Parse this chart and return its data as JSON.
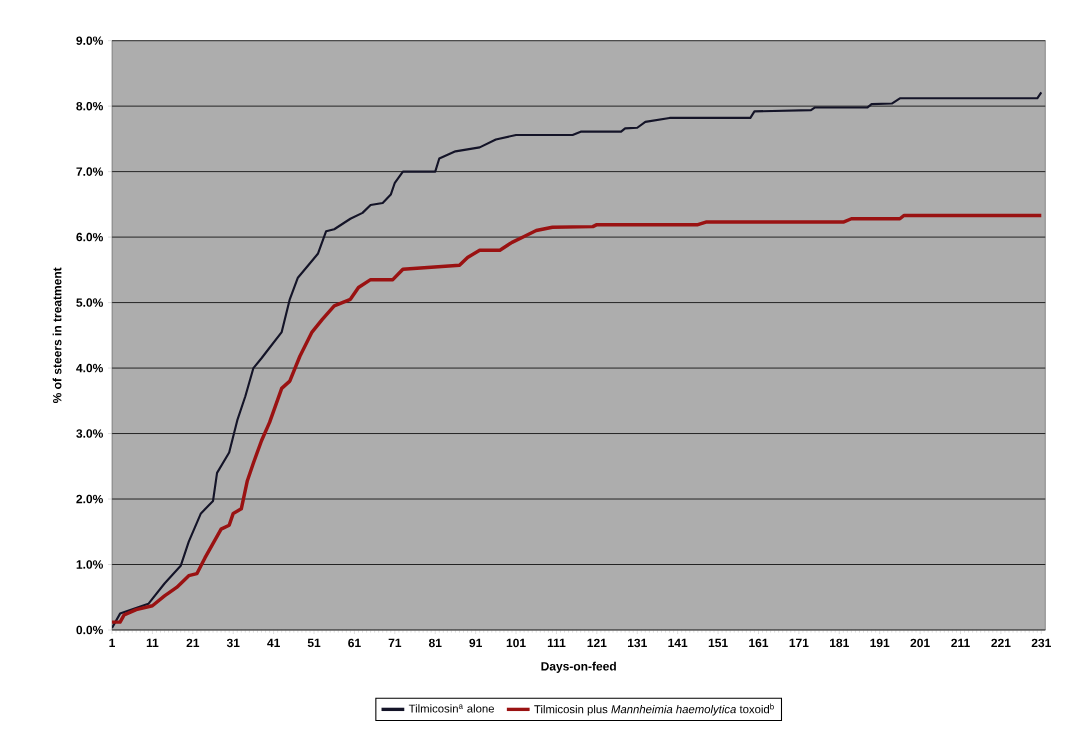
{
  "chart_data": {
    "type": "line",
    "xlabel": "Days-on-feed",
    "ylabel": "% of steers in treatment",
    "xlim": [
      1,
      232
    ],
    "ylim": [
      0,
      9
    ],
    "xticks": [
      1,
      11,
      21,
      31,
      41,
      51,
      61,
      71,
      81,
      91,
      101,
      111,
      121,
      131,
      141,
      151,
      161,
      171,
      181,
      191,
      201,
      211,
      221,
      231
    ],
    "yticks": [
      {
        "value": 0,
        "label": "0.0%"
      },
      {
        "value": 1,
        "label": "1.0%"
      },
      {
        "value": 2,
        "label": "2.0%"
      },
      {
        "value": 3,
        "label": "3.0%"
      },
      {
        "value": 4,
        "label": "4.0%"
      },
      {
        "value": 5,
        "label": "5.0%"
      },
      {
        "value": 6,
        "label": "6.0%"
      },
      {
        "value": 7,
        "label": "7.0%"
      },
      {
        "value": 8,
        "label": "8.0%"
      },
      {
        "value": 9,
        "label": "9.0%"
      }
    ],
    "grid": "y",
    "legend": "bottom",
    "marker": "none",
    "line_style": "solid",
    "series": [
      {
        "name": "Tilmicosin$^{a}$ alone",
        "color": "#141428",
        "x": [
          1,
          3,
          10,
          14,
          18,
          20,
          23,
          26,
          27,
          30,
          32,
          34,
          36,
          38,
          40,
          43,
          45,
          47,
          50,
          52,
          54,
          56,
          60,
          63,
          65,
          68,
          70,
          71,
          73,
          81,
          82,
          86,
          92,
          96,
          101,
          115,
          117,
          127,
          128,
          131,
          133,
          139,
          159,
          160,
          174,
          175,
          188,
          189,
          194,
          196,
          230,
          231
        ],
        "values": [
          0.03,
          0.25,
          0.4,
          0.71,
          0.98,
          1.35,
          1.78,
          1.97,
          2.4,
          2.71,
          3.2,
          3.57,
          4.0,
          4.15,
          4.31,
          4.55,
          5.05,
          5.38,
          5.6,
          5.75,
          6.09,
          6.12,
          6.28,
          6.37,
          6.49,
          6.52,
          6.65,
          6.83,
          7.0,
          7.0,
          7.2,
          7.31,
          7.37,
          7.49,
          7.56,
          7.56,
          7.61,
          7.61,
          7.66,
          7.67,
          7.76,
          7.82,
          7.82,
          7.92,
          7.94,
          7.98,
          7.98,
          8.03,
          8.04,
          8.12,
          8.12,
          8.21
        ]
      },
      {
        "name": "Tilmicosin plus *Mannheimia haemolytica* toxoid$^{b}$",
        "color": "#9a1212",
        "x": [
          1,
          3,
          4,
          7,
          11,
          14,
          17,
          20,
          22,
          24,
          28,
          30,
          31,
          33,
          34.5,
          36,
          38,
          40,
          43,
          45,
          47.5,
          50.5,
          53,
          56,
          60,
          62,
          65,
          70.5,
          73,
          80,
          87,
          89,
          92,
          97,
          100,
          103,
          106,
          110,
          120,
          121,
          146,
          148,
          182,
          184,
          196,
          197,
          231
        ],
        "values": [
          0.12,
          0.12,
          0.23,
          0.31,
          0.37,
          0.52,
          0.65,
          0.83,
          0.86,
          1.1,
          1.54,
          1.6,
          1.78,
          1.85,
          2.28,
          2.55,
          2.89,
          3.17,
          3.69,
          3.8,
          4.18,
          4.55,
          4.74,
          4.95,
          5.05,
          5.23,
          5.35,
          5.35,
          5.51,
          5.54,
          5.57,
          5.69,
          5.8,
          5.8,
          5.92,
          6.01,
          6.1,
          6.15,
          6.16,
          6.19,
          6.19,
          6.23,
          6.23,
          6.28,
          6.28,
          6.33,
          6.33
        ]
      }
    ]
  }
}
